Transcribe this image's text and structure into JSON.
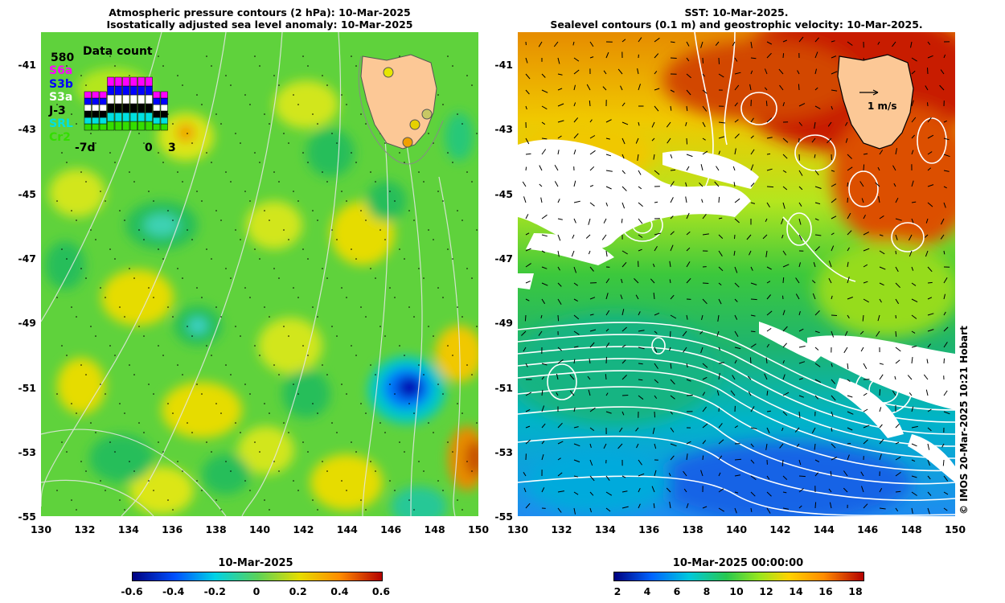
{
  "left_panel": {
    "title_line1": "Atmospheric pressure contours (2 hPa): 10-Mar-2025",
    "title_line2": "Isostatically adjusted sea level anomaly: 10-Mar-2025",
    "y_ticks": [
      "-41",
      "-43",
      "-45",
      "-47",
      "-49",
      "-51",
      "-53",
      "-55"
    ],
    "x_ticks": [
      "130",
      "132",
      "134",
      "136",
      "138",
      "140",
      "142",
      "144",
      "146",
      "148",
      "150"
    ],
    "data_count": {
      "title": "Data count",
      "max": "580",
      "missions": [
        {
          "name": "S6a",
          "color": "#ff00ff"
        },
        {
          "name": "S3b",
          "color": "#0000ff"
        },
        {
          "name": "S3a",
          "color": "#ffffff"
        },
        {
          "name": "J-3",
          "color": "#000000"
        },
        {
          "name": "SRL",
          "color": "#00e0e0"
        },
        {
          "name": "Cr2",
          "color": "#33dd00"
        }
      ],
      "x_start": "-7d",
      "x_zero": "0",
      "x_end": "3"
    },
    "colorbar": {
      "title": "10-Mar-2025",
      "ticks": [
        "-0.6",
        "-0.4",
        "-0.2",
        "0",
        "0.2",
        "0.4",
        "0.6"
      ]
    }
  },
  "right_panel": {
    "title_line1": "SST: 10-Mar-2025.",
    "title_line2": "Sealevel contours (0.1 m) and geostrophic velocity: 10-Mar-2025.",
    "y_ticks": [
      "-41",
      "-43",
      "-45",
      "-47",
      "-49",
      "-51",
      "-53",
      "-55"
    ],
    "x_ticks": [
      "130",
      "132",
      "134",
      "136",
      "138",
      "140",
      "142",
      "144",
      "146",
      "148",
      "150"
    ],
    "velocity_scale": "1 m/s",
    "colorbar": {
      "title": "10-Mar-2025 00:00:00",
      "ticks": [
        "2",
        "4",
        "6",
        "8",
        "10",
        "12",
        "14",
        "16",
        "18"
      ]
    }
  },
  "copyright": "© IMOS 20-Mar-2025 10:21 Hobart",
  "colors": {
    "land": "#fcc896",
    "sla_colormap": [
      "#00007f",
      "#0050ff",
      "#00d2e6",
      "#5ad25a",
      "#e6dc00",
      "#ff8c00",
      "#b40000"
    ],
    "sst_colormap": [
      "#00007f",
      "#0064ff",
      "#00c8dc",
      "#28c850",
      "#96e61e",
      "#ffd200",
      "#ff8c00",
      "#b40000"
    ]
  }
}
